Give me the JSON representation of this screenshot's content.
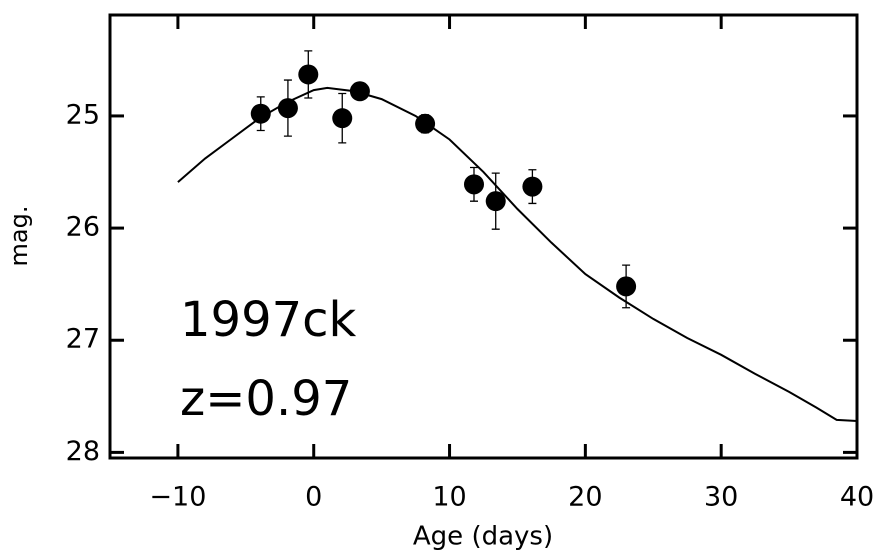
{
  "chart_data": {
    "type": "scatter",
    "xlabel": "Age (days)",
    "ylabel": "mag.",
    "annotations": [
      "1997ck",
      "z=0.97"
    ],
    "xlim": [
      -15,
      40
    ],
    "ylim": [
      28.05,
      24.1
    ],
    "xticks": [
      {
        "value": -10,
        "label": "−10"
      },
      0,
      10,
      20,
      30,
      40
    ],
    "yticks": [
      25,
      26,
      27,
      28
    ],
    "series": [
      {
        "type": "scatter",
        "color": "#000000",
        "x": [
          -3.9,
          -1.9,
          -0.4,
          2.1,
          3.4,
          8.2,
          11.8,
          13.4,
          16.1,
          23.0
        ],
        "values": [
          24.98,
          24.93,
          24.63,
          25.02,
          24.78,
          25.07,
          25.61,
          25.76,
          25.63,
          26.52
        ],
        "errors": [
          0.15,
          0.25,
          0.21,
          0.22,
          0.05,
          0.08,
          0.15,
          0.25,
          0.15,
          0.19
        ]
      },
      {
        "type": "line",
        "color": "#000000",
        "x": [
          -10,
          -8,
          -6,
          -4,
          -2,
          0,
          1,
          3,
          5,
          7.5,
          10,
          12.5,
          15,
          17.5,
          20,
          22.5,
          25,
          27.5,
          30,
          32.5,
          35,
          37,
          38.5,
          40
        ],
        "values": [
          25.59,
          25.38,
          25.2,
          25.02,
          24.88,
          24.77,
          24.75,
          24.78,
          24.85,
          25.0,
          25.21,
          25.5,
          25.83,
          26.13,
          26.41,
          26.62,
          26.81,
          26.98,
          27.13,
          27.3,
          27.46,
          27.6,
          27.71,
          27.72
        ]
      }
    ]
  }
}
